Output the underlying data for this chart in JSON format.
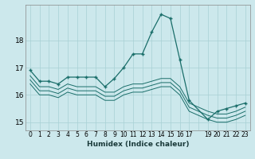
{
  "xlabel": "Humidex (Indice chaleur)",
  "bg_color": "#cce8ec",
  "grid_color": "#a8d0d4",
  "line_color": "#1a6e6a",
  "xlim": [
    -0.5,
    23.5
  ],
  "ylim": [
    14.7,
    19.3
  ],
  "yticks": [
    15,
    16,
    17,
    18
  ],
  "xtick_labels": [
    "0",
    "1",
    "2",
    "3",
    "4",
    "5",
    "6",
    "7",
    "8",
    "9",
    "10",
    "11",
    "12",
    "13",
    "14",
    "15",
    "16",
    "17",
    "",
    "19",
    "20",
    "21",
    "22",
    "23"
  ],
  "lines": [
    {
      "x": [
        0,
        1,
        2,
        3,
        4,
        5,
        6,
        7,
        8,
        9,
        10,
        11,
        12,
        13,
        14,
        15,
        16,
        17,
        19,
        20,
        21,
        22,
        23
      ],
      "y": [
        16.9,
        16.5,
        16.5,
        16.4,
        16.65,
        16.65,
        16.65,
        16.65,
        16.3,
        16.6,
        17.0,
        17.5,
        17.5,
        18.3,
        18.95,
        18.8,
        17.3,
        15.8,
        15.1,
        15.4,
        15.5,
        15.6,
        15.7
      ],
      "marker": true
    },
    {
      "x": [
        0,
        1,
        2,
        3,
        4,
        5,
        6,
        7,
        8,
        9,
        10,
        11,
        12,
        13,
        14,
        15,
        16,
        17,
        19,
        20,
        21,
        22,
        23
      ],
      "y": [
        16.7,
        16.3,
        16.3,
        16.2,
        16.4,
        16.3,
        16.3,
        16.3,
        16.1,
        16.1,
        16.3,
        16.4,
        16.4,
        16.5,
        16.6,
        16.6,
        16.3,
        15.7,
        15.4,
        15.3,
        15.3,
        15.4,
        15.55
      ],
      "marker": false
    },
    {
      "x": [
        0,
        1,
        2,
        3,
        4,
        5,
        6,
        7,
        8,
        9,
        10,
        11,
        12,
        13,
        14,
        15,
        16,
        17,
        19,
        20,
        21,
        22,
        23
      ],
      "y": [
        16.55,
        16.15,
        16.15,
        16.05,
        16.25,
        16.15,
        16.15,
        16.15,
        15.95,
        15.95,
        16.15,
        16.25,
        16.25,
        16.35,
        16.45,
        16.45,
        16.15,
        15.55,
        15.25,
        15.15,
        15.15,
        15.25,
        15.4
      ],
      "marker": false
    },
    {
      "x": [
        0,
        1,
        2,
        3,
        4,
        5,
        6,
        7,
        8,
        9,
        10,
        11,
        12,
        13,
        14,
        15,
        16,
        17,
        19,
        20,
        21,
        22,
        23
      ],
      "y": [
        16.4,
        16.0,
        16.0,
        15.9,
        16.1,
        16.0,
        16.0,
        16.0,
        15.8,
        15.8,
        16.0,
        16.1,
        16.1,
        16.2,
        16.3,
        16.3,
        16.0,
        15.4,
        15.1,
        15.0,
        15.0,
        15.1,
        15.25
      ],
      "marker": false
    }
  ]
}
